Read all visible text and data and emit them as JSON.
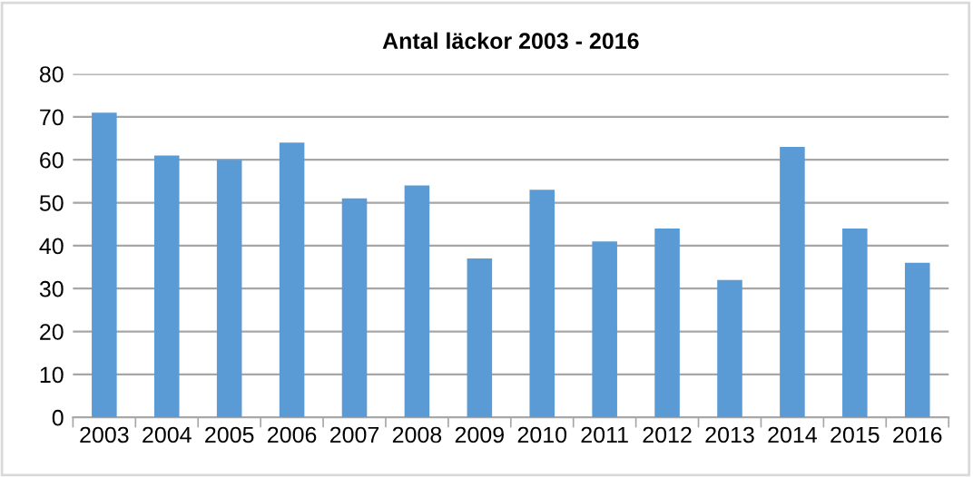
{
  "chart_data": {
    "type": "bar",
    "title": "Antal läckor 2003 - 2016",
    "categories": [
      "2003",
      "2004",
      "2005",
      "2006",
      "2007",
      "2008",
      "2009",
      "2010",
      "2011",
      "2012",
      "2013",
      "2014",
      "2015",
      "2016"
    ],
    "values": [
      71,
      61,
      60,
      64,
      51,
      54,
      37,
      53,
      41,
      44,
      32,
      63,
      44,
      36
    ],
    "color": "#5b9bd5",
    "ylim": [
      0,
      80
    ],
    "yticks": [
      0,
      10,
      20,
      30,
      40,
      50,
      60,
      70,
      80
    ],
    "grid": "y",
    "legend": false
  }
}
